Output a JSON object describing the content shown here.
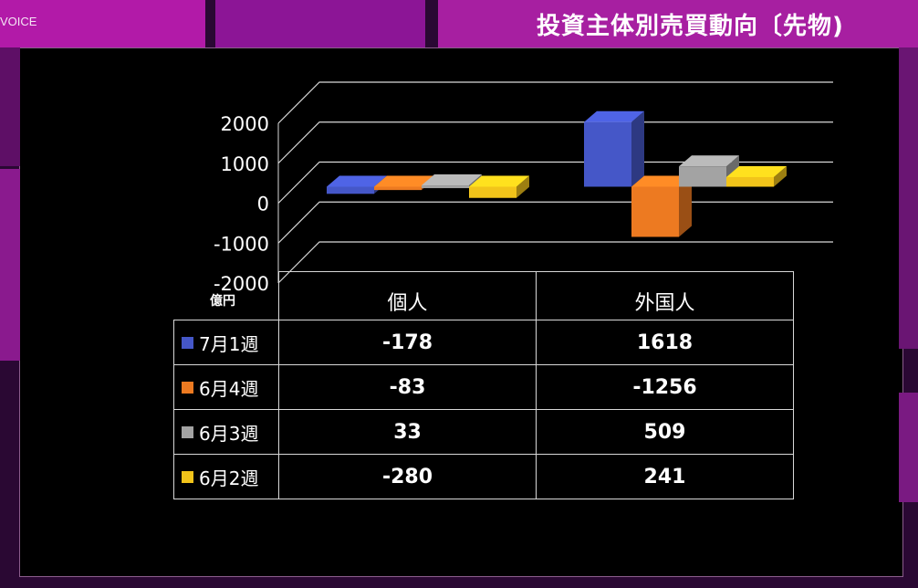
{
  "header": {
    "source_text": "VOICE",
    "title": "投資主体別売買動向〔先物)"
  },
  "chart_data": {
    "type": "bar",
    "unit": "億円",
    "categories": [
      "個人",
      "外国人"
    ],
    "ylim": [
      -2000,
      2000
    ],
    "yticks": [
      "2000",
      "1000",
      "0",
      "-1000",
      "-2000"
    ],
    "series": [
      {
        "name": "7月1週",
        "color": "#4557c8",
        "values": [
          -178,
          1618
        ]
      },
      {
        "name": "6月4週",
        "color": "#ed7a21",
        "values": [
          -83,
          -1256
        ]
      },
      {
        "name": "6月3週",
        "color": "#a3a3a3",
        "values": [
          33,
          509
        ]
      },
      {
        "name": "6月2週",
        "color": "#f2c41a",
        "values": [
          -280,
          241
        ]
      }
    ]
  },
  "table": {
    "rows": [
      {
        "label": "7月1週",
        "values": [
          "-178",
          "1618"
        ]
      },
      {
        "label": "6月4週",
        "values": [
          "-83",
          "-1256"
        ]
      },
      {
        "label": "6月3週",
        "values": [
          "33",
          "509"
        ]
      },
      {
        "label": "6月2週",
        "values": [
          "-280",
          "241"
        ]
      }
    ]
  }
}
